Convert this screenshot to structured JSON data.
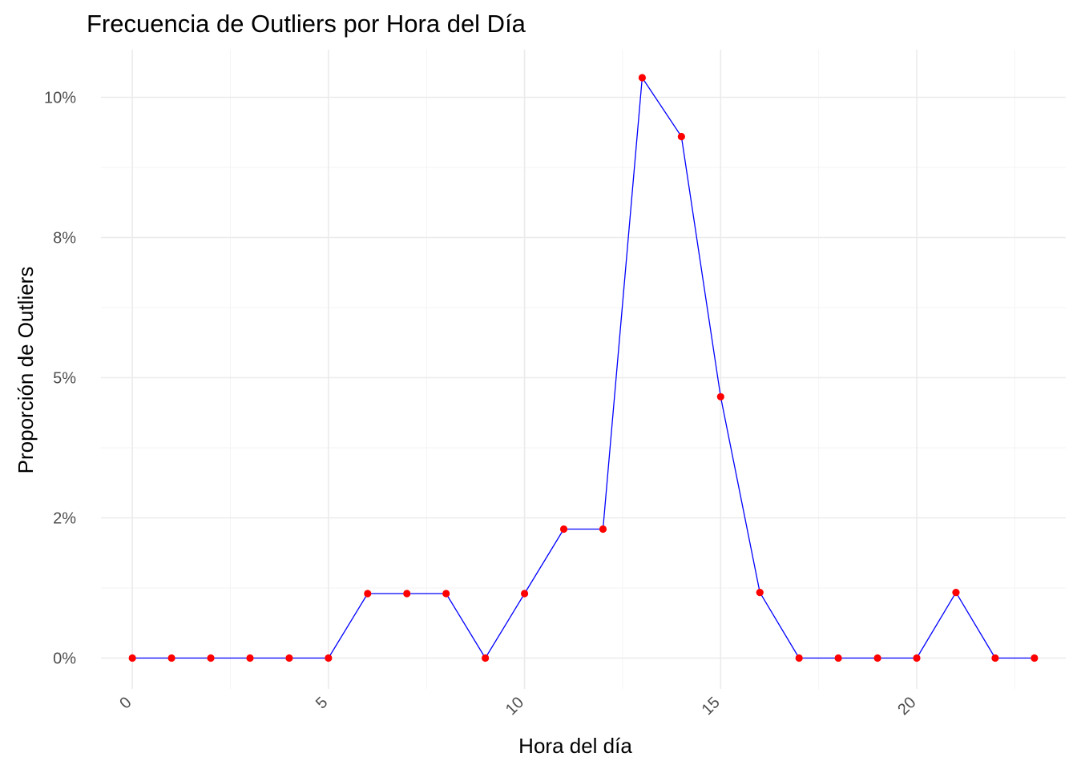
{
  "chart_data": {
    "type": "line",
    "title": "Frecuencia de Outliers por Hora del Día",
    "xlabel": "Hora del día",
    "ylabel": "Proporción de Outliers",
    "xlim": [
      -0.8,
      23.8
    ],
    "ylim": [
      -0.0055,
      0.1085
    ],
    "x_ticks": [
      0,
      5,
      10,
      15,
      20
    ],
    "x_tick_labels": [
      "0",
      "5",
      "10",
      "15",
      "20"
    ],
    "y_ticks": [
      0,
      0.025,
      0.05,
      0.075,
      0.1
    ],
    "y_tick_labels": [
      "0%",
      "2%",
      "5%",
      "8%",
      "10%"
    ],
    "grid": true,
    "legend": "none",
    "colors": {
      "line": "#0000ff",
      "points": "#ff0000"
    },
    "series": [
      {
        "x": [
          0,
          1,
          2,
          3,
          4,
          5,
          6,
          7,
          8,
          9,
          10,
          11,
          12,
          13,
          14,
          15,
          16,
          17,
          18,
          19,
          20,
          21,
          22,
          23
        ],
        "values": [
          0,
          0,
          0,
          0,
          0,
          0,
          0.0115,
          0.0115,
          0.0115,
          0,
          0.0115,
          0.023,
          0.023,
          0.1035,
          0.093,
          0.0466,
          0.0117,
          0,
          0,
          0,
          0,
          0.0117,
          0,
          0
        ]
      }
    ]
  }
}
